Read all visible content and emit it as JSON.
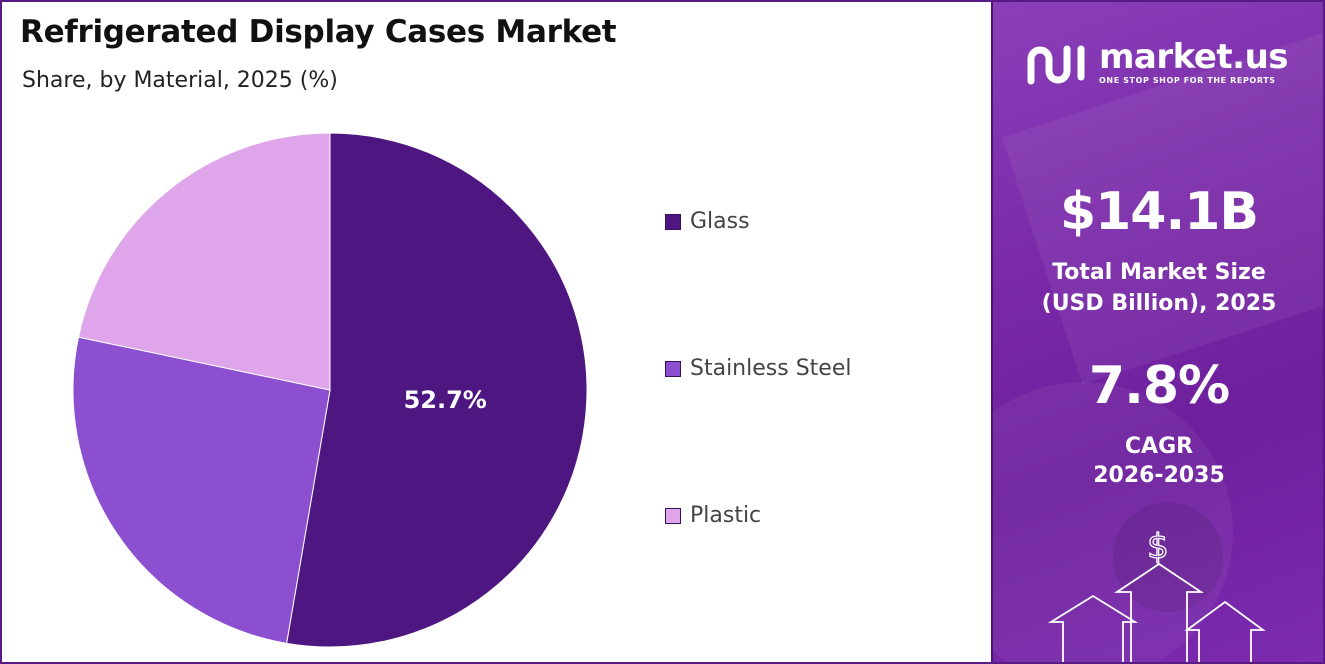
{
  "header": {
    "title": "Refrigerated Display Cases Market",
    "subtitle": "Share, by Material, 2025 (%)"
  },
  "chart_data": {
    "type": "pie",
    "title": "Refrigerated Display Cases Market",
    "subtitle": "Share, by Material, 2025 (%)",
    "categories": [
      "Glass",
      "Stainless Steel",
      "Plastic"
    ],
    "values": [
      52.7,
      25.6,
      21.7
    ],
    "colors": [
      "#4e1680",
      "#8c4fcf",
      "#dfa5ea"
    ],
    "data_labels": [
      "52.7%",
      "",
      ""
    ],
    "legend_position": "right"
  },
  "sidebar": {
    "brand_name": "market.us",
    "brand_tagline": "ONE STOP SHOP FOR THE REPORTS",
    "market_size_value": "$14.1B",
    "market_size_label_line1": "Total Market Size",
    "market_size_label_line2": "(USD Billion), 2025",
    "cagr_value": "7.8%",
    "cagr_label_line1": "CAGR",
    "cagr_label_line2": "2026-2035",
    "dollar_symbol": "$",
    "background_color": "#7a2aa8"
  }
}
